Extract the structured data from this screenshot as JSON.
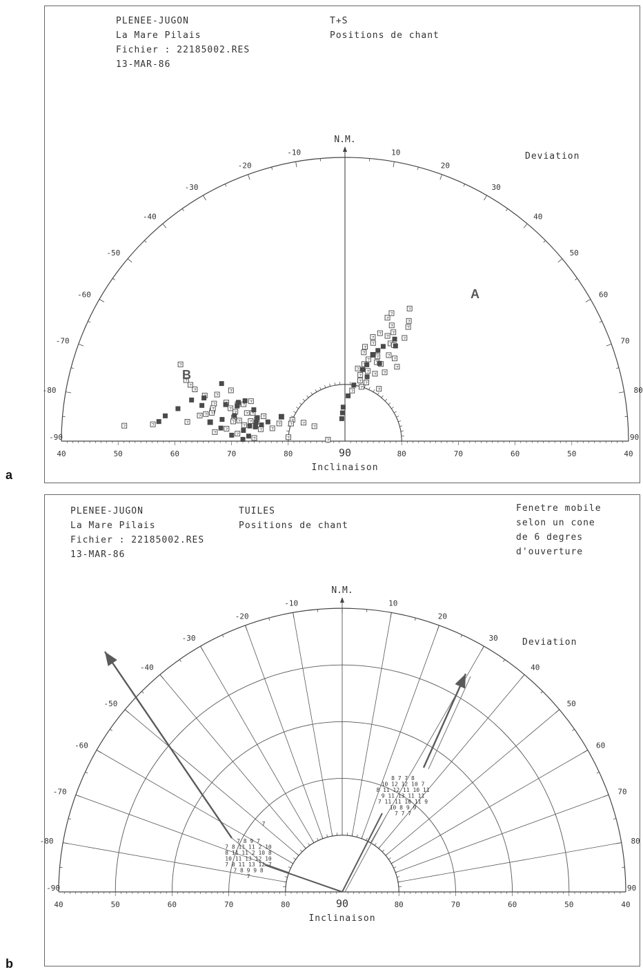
{
  "panels": [
    {
      "letter": "a",
      "header_left": [
        "PLENEE-JUGON",
        "La Mare Pilais",
        "Fichier : 22185002.RES",
        "13-MAR-86"
      ],
      "header_mid": [
        "T+S",
        "Positions de chant"
      ],
      "header_right": [],
      "north_label": "N.M.",
      "deviation_label": "Deviation",
      "x_axis_label": "Inclinaison",
      "center_value": "90",
      "cluster_labels": [
        "A",
        "B"
      ]
    },
    {
      "letter": "b",
      "header_left": [
        "PLENEE-JUGON",
        "La Mare Pilais",
        "Fichier : 22185002.RES",
        "13-MAR-86"
      ],
      "header_mid": [
        "TUILES",
        "Positions de chant"
      ],
      "header_right": [
        "Fenetre mobile",
        "selon un cone",
        "de 6 degres",
        "d'ouverture"
      ],
      "north_label": "N.M.",
      "deviation_label": "Deviation",
      "x_axis_label": "Inclinaison",
      "center_value": "90"
    }
  ],
  "deviation_ticks": [
    "-90",
    "-80",
    "-70",
    "-60",
    "-50",
    "-40",
    "-30",
    "-20",
    "-10",
    "10",
    "20",
    "30",
    "40",
    "50",
    "60",
    "70",
    "80",
    "90"
  ],
  "inclination_ticks_left": [
    "40",
    "50",
    "60",
    "70",
    "80"
  ],
  "inclination_ticks_right": [
    "80",
    "70",
    "60",
    "50",
    "40"
  ],
  "chart_data": [
    {
      "type": "scatter",
      "projection": "polar half-circle (deviation angle, inclinaison radius)",
      "deviation_range": [
        -90,
        90
      ],
      "inclination_range": [
        90,
        40
      ],
      "series": [
        {
          "marker": "open-square",
          "points": [
            [
              -65,
              58
            ],
            [
              -69,
              60
            ],
            [
              -72,
              64
            ],
            [
              -71,
              62
            ],
            [
              -74,
              66
            ],
            [
              -78,
              70
            ],
            [
              -82,
              66
            ],
            [
              -85,
              56
            ],
            [
              -66,
              68
            ],
            [
              -70,
              66
            ],
            [
              -72,
              68
            ],
            [
              -75,
              70
            ],
            [
              -77,
              66
            ],
            [
              -80,
              70
            ],
            [
              -83,
              62
            ],
            [
              -78,
              73
            ],
            [
              -74,
              69
            ],
            [
              -70,
              71
            ],
            [
              -76,
              74
            ],
            [
              -79,
              71
            ],
            [
              -81,
              72
            ],
            [
              -84,
              69
            ],
            [
              -86,
              51
            ],
            [
              -73,
              73
            ],
            [
              -69,
              78
            ],
            [
              -68,
              80
            ],
            [
              -64,
              84
            ],
            [
              -72,
              80
            ],
            [
              -75,
              78
            ],
            [
              -80,
              77
            ],
            [
              -86,
              71
            ],
            [
              -88,
              74
            ],
            [
              -80,
              64
            ],
            [
              -66,
              82
            ],
            [
              8,
              81
            ],
            [
              10,
              77
            ],
            [
              12,
              73
            ],
            [
              16,
              72
            ],
            [
              19,
              67
            ],
            [
              22,
              68
            ],
            [
              25,
              71
            ],
            [
              22,
              75
            ],
            [
              18,
              77
            ],
            [
              14,
              79
            ],
            [
              12,
              74
            ],
            [
              15,
              71
            ],
            [
              18,
              70
            ],
            [
              20,
              66
            ],
            [
              24,
              69
            ],
            [
              26,
              64
            ],
            [
              28,
              66
            ],
            [
              30,
              69
            ],
            [
              27,
              71
            ],
            [
              30,
              76
            ],
            [
              33,
              79
            ],
            [
              24,
              77
            ],
            [
              20,
              79
            ],
            [
              17,
              80
            ],
            [
              13,
              78
            ],
            [
              21,
              74
            ],
            [
              27,
              73
            ],
            [
              35,
              74
            ],
            [
              -78,
              66
            ],
            [
              -76,
              66
            ],
            [
              -73,
              75
            ],
            [
              -82,
              75
            ],
            [
              -86,
              67
            ],
            [
              -70,
              61
            ],
            [
              -67,
              72
            ],
            [
              -71,
              70
            ],
            [
              -74,
              72
            ],
            [
              -79,
              65
            ],
            [
              16,
              75
            ],
            [
              18,
              74
            ],
            [
              22,
              70
            ],
            [
              25,
              75
            ],
            [
              14,
              76
            ],
            [
              29,
              67
            ],
            [
              31,
              73
            ],
            [
              -86,
              80
            ],
            [
              -85,
              87
            ]
          ]
        },
        {
          "marker": "filled-square",
          "points": [
            [
              -84,
              57
            ],
            [
              -82,
              58
            ],
            [
              -79,
              60
            ],
            [
              -75,
              62
            ],
            [
              -73,
              64
            ],
            [
              -76,
              64
            ],
            [
              -80,
              68
            ],
            [
              -82,
              66
            ],
            [
              -87,
              70
            ],
            [
              -89,
              72
            ],
            [
              -87,
              73
            ],
            [
              -84,
              72
            ],
            [
              -81,
              73
            ],
            [
              -81,
              74
            ],
            [
              -79,
              75
            ],
            [
              -76,
              76
            ],
            [
              -75,
              74
            ],
            [
              -73,
              68
            ],
            [
              -71,
              73
            ],
            [
              -77,
              70
            ],
            [
              -80,
              74
            ],
            [
              -69,
              78
            ],
            [
              -5,
              85
            ],
            [
              -3,
              84
            ],
            [
              -8,
              86
            ],
            [
              4,
              82
            ],
            [
              9,
              80
            ],
            [
              16,
              76
            ],
            [
              18,
              74
            ],
            [
              20,
              73
            ],
            [
              22,
              72
            ],
            [
              24,
              75
            ],
            [
              28,
              71
            ],
            [
              26,
              70
            ],
            [
              14,
              77
            ],
            [
              19,
              78
            ],
            [
              -70,
              70
            ],
            [
              -68,
              71
            ],
            [
              -65,
              66
            ],
            [
              -72,
              70
            ],
            [
              -78,
              74
            ],
            [
              -84,
              68
            ]
          ]
        }
      ],
      "annotations": [
        "A",
        "B"
      ]
    },
    {
      "type": "heatmap",
      "projection": "polar half-circle with density counts",
      "deviation_range": [
        -90,
        90
      ],
      "inclination_range": [
        90,
        40
      ],
      "density_rows_left": [
        "7 8 9 7",
        "7 8 11 11 2 10",
        "8 11 11 2 10 8",
        "10 11 13 12 10",
        "7 8 11 13 12 7",
        "7 8 9 9 8",
        "7"
      ],
      "density_rows_right": [
        "8 7 7 8",
        "10 12 12 10 7",
        "8 11 12 11 10 11",
        "9 11 13 11 11",
        "7 11 11 10 11 9",
        "10 8 9 9",
        "7 7 7"
      ],
      "density_isolated": "7",
      "arrows": [
        {
          "deviation": -62,
          "description": "arrow from centre through cluster B direction"
        },
        {
          "deviation": 27,
          "description": "arrow from centre through cluster A direction"
        }
      ]
    }
  ]
}
